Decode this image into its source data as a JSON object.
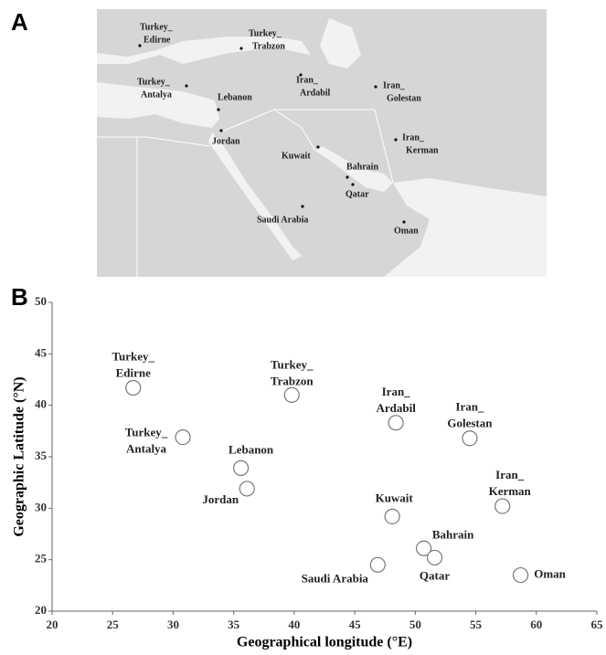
{
  "panel_a": {
    "letter": "A",
    "places": [
      [
        "Turkey_",
        "Edirne"
      ],
      [
        "Turkey_",
        "Trabzon"
      ],
      [
        "Iran_",
        "Ardabil"
      ],
      [
        "Iran_",
        "Golestan"
      ],
      [
        "Turkey_",
        "Antalya"
      ],
      [
        "Lebanon"
      ],
      [
        "Jordan"
      ],
      [
        "Iran_",
        "Kerman"
      ],
      [
        "Kuwait"
      ],
      [
        "Bahrain"
      ],
      [
        "Qatar"
      ],
      [
        "Saudi Arabia"
      ],
      [
        "Oman"
      ]
    ]
  },
  "chart_data": {
    "type": "scatter",
    "letter": "B",
    "xlabel": "Geographical longitude (°E)",
    "ylabel": "Geographic Latitude (°N)",
    "labels": [
      [
        "Turkey_",
        "Edirne"
      ],
      [
        "Turkey_",
        "Trabzon"
      ],
      [
        "Iran_",
        "Ardabil"
      ],
      [
        "Iran_",
        "Golestan"
      ],
      [
        "Turkey_",
        "Antalya"
      ],
      [
        "Lebanon"
      ],
      [
        "Jordan"
      ],
      [
        "Iran_",
        "Kerman"
      ],
      [
        "Kuwait"
      ],
      [
        "Bahrain"
      ],
      [
        "Qatar"
      ],
      [
        "Saudi Arabia"
      ],
      [
        "Oman"
      ]
    ],
    "x": [
      26.7,
      39.8,
      48.4,
      54.5,
      30.8,
      35.6,
      36.1,
      57.2,
      48.1,
      50.7,
      51.6,
      46.9,
      58.7
    ],
    "values": [
      41.7,
      41.0,
      38.3,
      36.8,
      36.9,
      33.9,
      31.9,
      30.2,
      29.2,
      26.1,
      25.2,
      24.5,
      23.5
    ],
    "xlim": [
      20,
      65
    ],
    "xticks": [
      20,
      25,
      30,
      35,
      40,
      45,
      50,
      55,
      60,
      65
    ],
    "ylim": [
      20,
      50
    ],
    "yticks": [
      20,
      25,
      30,
      35,
      40,
      45,
      50
    ]
  }
}
